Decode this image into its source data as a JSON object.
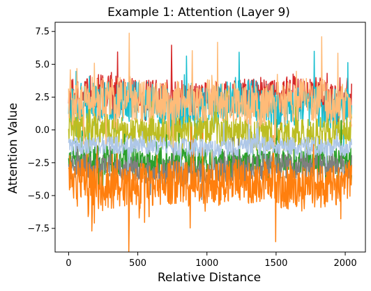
{
  "chart_data": {
    "type": "line",
    "title": "Example 1: Attention (Layer 9)",
    "xlabel": "Relative Distance",
    "ylabel": "Attention Value",
    "xlim": [
      -98,
      2146
    ],
    "ylim": [
      -9.3,
      8.2
    ],
    "xticks": [
      0,
      500,
      1000,
      1500,
      2000
    ],
    "yticks": [
      -7.5,
      -5.0,
      -2.5,
      0.0,
      2.5,
      5.0,
      7.5
    ],
    "xtick_labels": [
      "0",
      "500",
      "1000",
      "1500",
      "2000"
    ],
    "ytick_labels": [
      "−7.5",
      "−5.0",
      "−2.5",
      "0.0",
      "2.5",
      "5.0",
      "7.5"
    ],
    "grid": false,
    "legend": "none",
    "x_range": [
      0,
      2047
    ],
    "series": [
      {
        "color": "#d62728",
        "keypoints": [
          [
            0,
            2.5
          ],
          [
            200,
            3.0
          ],
          [
            500,
            2.6
          ],
          [
            1000,
            2.4
          ],
          [
            1500,
            2.8
          ],
          [
            2047,
            2.6
          ]
        ],
        "amp": 1.3
      },
      {
        "color": "#17becf",
        "keypoints": [
          [
            0,
            1.6
          ],
          [
            200,
            2.0
          ],
          [
            500,
            2.2
          ],
          [
            900,
            1.4
          ],
          [
            1200,
            2.6
          ],
          [
            1500,
            1.8
          ],
          [
            2047,
            1.5
          ]
        ],
        "amp": 1.6
      },
      {
        "color": "#bcbd22",
        "keypoints": [
          [
            0,
            0.2
          ],
          [
            500,
            -0.2
          ],
          [
            1000,
            0.0
          ],
          [
            1500,
            -0.5
          ],
          [
            2047,
            0.0
          ]
        ],
        "amp": 1.2
      },
      {
        "color": "#2ca02c",
        "keypoints": [
          [
            0,
            -2.2
          ],
          [
            500,
            -2.4
          ],
          [
            1000,
            -2.6
          ],
          [
            1500,
            -2.3
          ],
          [
            2047,
            -2.4
          ]
        ],
        "amp": 1.1
      },
      {
        "color": "#7f7f7f",
        "keypoints": [
          [
            0,
            -2.8
          ],
          [
            500,
            -3.0
          ],
          [
            900,
            -3.4
          ],
          [
            1500,
            -2.7
          ],
          [
            2047,
            -2.9
          ]
        ],
        "amp": 1.0
      },
      {
        "color": "#ff7f0e",
        "keypoints": [
          [
            0,
            -3.5
          ],
          [
            250,
            -4.5
          ],
          [
            500,
            -4.2
          ],
          [
            800,
            -4.0
          ],
          [
            1000,
            -4.3
          ],
          [
            1400,
            -3.8
          ],
          [
            1650,
            -4.6
          ],
          [
            2047,
            -3.8
          ]
        ],
        "amp": 1.7
      },
      {
        "color": "#aec7e8",
        "keypoints": [
          [
            0,
            -1.3
          ],
          [
            500,
            -1.1
          ],
          [
            1000,
            -1.4
          ],
          [
            1500,
            -1.2
          ],
          [
            2047,
            -1.3
          ]
        ],
        "amp": 0.7
      },
      {
        "color": "#ffbb78",
        "keypoints": [
          [
            0,
            2.2
          ],
          [
            300,
            2.6
          ],
          [
            600,
            2.0
          ],
          [
            1000,
            2.3
          ],
          [
            1400,
            1.8
          ],
          [
            1700,
            2.4
          ],
          [
            2047,
            1.6
          ]
        ],
        "amp": 1.6
      }
    ]
  }
}
